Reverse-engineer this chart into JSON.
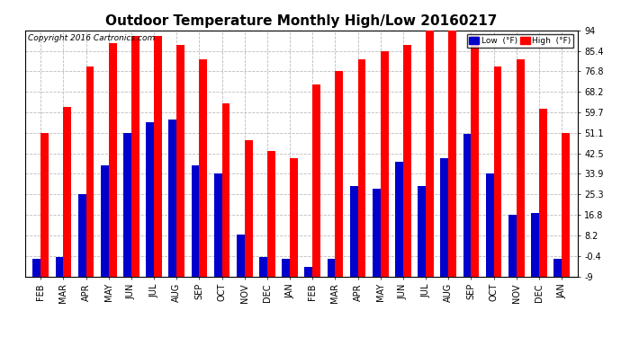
{
  "title": "Outdoor Temperature Monthly High/Low 20160217",
  "copyright": "Copyright 2016 Cartronics.com",
  "legend_low": "Low  (°F)",
  "legend_high": "High  (°F)",
  "categories": [
    "FEB",
    "MAR",
    "APR",
    "MAY",
    "JUN",
    "JUL",
    "AUG",
    "SEP",
    "OCT",
    "NOV",
    "DEC",
    "JAN",
    "FEB",
    "MAR",
    "APR",
    "MAY",
    "JUN",
    "JUL",
    "AUG",
    "SEP",
    "OCT",
    "NOV",
    "DEC",
    "JAN"
  ],
  "high_values": [
    51.1,
    62.0,
    79.0,
    88.5,
    91.5,
    91.5,
    88.0,
    82.0,
    63.5,
    48.0,
    43.5,
    40.5,
    71.5,
    77.0,
    82.0,
    85.4,
    88.0,
    94.0,
    94.0,
    91.5,
    79.0,
    82.0,
    61.0,
    51.1
  ],
  "low_values": [
    -1.5,
    -1.0,
    25.3,
    37.5,
    51.1,
    55.5,
    56.5,
    37.5,
    33.9,
    8.5,
    -1.0,
    -1.5,
    -5.0,
    -1.5,
    29.0,
    27.5,
    39.0,
    29.0,
    40.5,
    50.5,
    33.9,
    16.8,
    17.5,
    -1.5
  ],
  "high_color": "#ff0000",
  "low_color": "#0000cc",
  "bg_color": "#ffffff",
  "grid_color": "#bbbbbb",
  "ylim_min": -9.0,
  "ylim_max": 94.0,
  "yticks": [
    -9.0,
    -0.4,
    8.2,
    16.8,
    25.3,
    33.9,
    42.5,
    51.1,
    59.7,
    68.2,
    76.8,
    85.4,
    94.0
  ],
  "bar_width": 0.35,
  "title_fontsize": 11,
  "tick_fontsize": 7,
  "copyright_fontsize": 6.5
}
